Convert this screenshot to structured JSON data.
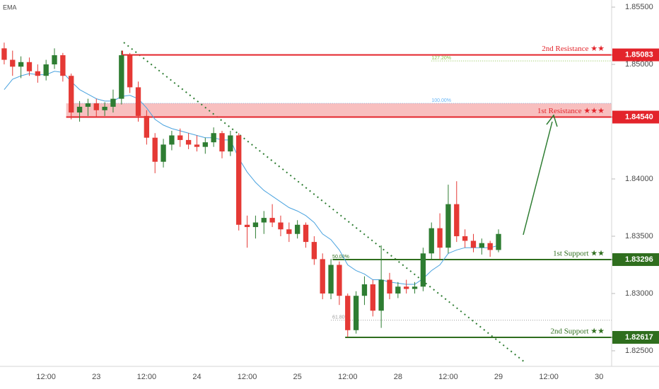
{
  "chart_data": {
    "type": "candlestick",
    "indicator_label": "EMA",
    "categories": [
      null,
      null,
      null,
      null,
      null,
      "12:00",
      null,
      null,
      null,
      null,
      null,
      "23",
      null,
      null,
      null,
      null,
      null,
      "12:00",
      null,
      null,
      null,
      null,
      null,
      "24",
      null,
      null,
      null,
      null,
      null,
      "12:00",
      null,
      null,
      null,
      null,
      null,
      "25",
      null,
      null,
      null,
      null,
      null,
      "12:00",
      null,
      null,
      null,
      null,
      null,
      "28",
      null,
      null,
      null,
      null,
      null,
      "12:00",
      null,
      null,
      null,
      null,
      null,
      "29",
      null,
      null,
      null,
      null,
      null,
      "12:00",
      null,
      null,
      null,
      null,
      null,
      "30",
      null
    ],
    "open": [
      1.8514,
      1.8504,
      1.8498,
      1.8502,
      1.8494,
      1.849,
      1.85,
      1.8508,
      1.849,
      1.8458,
      1.8463,
      1.8466,
      1.846,
      1.8463,
      1.847,
      1.8508,
      1.848,
      1.8455,
      1.8436,
      1.8415,
      1.843,
      1.8438,
      1.8434,
      1.843,
      1.8428,
      1.8432,
      1.844,
      1.8424,
      1.8438,
      1.836,
      1.8358,
      1.8362,
      1.8366,
      1.8362,
      1.8356,
      1.8352,
      1.836,
      1.8345,
      1.833,
      1.83,
      1.8325,
      1.8298,
      1.8268,
      1.8298,
      1.8308,
      1.8285,
      1.8312,
      1.83,
      1.8306,
      1.8304,
      1.8306,
      1.8335,
      1.8357,
      1.834,
      1.8378,
      1.835,
      1.8346,
      1.834,
      1.8344,
      1.8338,
      null,
      null,
      null,
      null,
      null,
      null,
      null,
      null,
      null,
      null,
      null,
      null,
      null
    ],
    "high": [
      1.8519,
      1.8512,
      1.8507,
      1.8506,
      1.85,
      1.8504,
      1.8514,
      1.851,
      1.8492,
      1.8468,
      1.847,
      1.847,
      1.8467,
      1.8478,
      1.8512,
      1.851,
      1.8485,
      1.846,
      1.844,
      1.8435,
      1.8442,
      1.8444,
      1.844,
      1.8438,
      1.8436,
      1.8445,
      1.8442,
      1.8442,
      1.844,
      1.8368,
      1.8368,
      1.8372,
      1.8378,
      1.8368,
      1.8362,
      1.8364,
      1.8362,
      1.835,
      1.8335,
      1.833,
      1.8328,
      1.83,
      1.8302,
      1.8315,
      1.8312,
      1.8342,
      1.8318,
      1.831,
      1.8312,
      1.831,
      1.834,
      1.8362,
      1.837,
      1.8395,
      1.8398,
      1.8356,
      1.8352,
      1.8348,
      1.8346,
      1.8356,
      null,
      null,
      null,
      null,
      null,
      null,
      null,
      null,
      null,
      null,
      null,
      null,
      null
    ],
    "low": [
      1.85,
      1.849,
      1.8488,
      1.849,
      1.8484,
      1.8486,
      1.8496,
      1.8485,
      1.8452,
      1.845,
      1.8455,
      1.8454,
      1.8455,
      1.8458,
      1.8465,
      1.8475,
      1.845,
      1.843,
      1.8405,
      1.841,
      1.8425,
      1.8428,
      1.8426,
      1.8424,
      1.8422,
      1.8428,
      1.8418,
      1.842,
      1.8355,
      1.834,
      1.8348,
      1.8352,
      1.8358,
      1.835,
      1.8345,
      1.8348,
      1.834,
      1.8325,
      1.8295,
      1.8295,
      1.829,
      1.8262,
      1.8265,
      1.829,
      1.828,
      1.827,
      1.8295,
      1.8296,
      1.83,
      1.83,
      1.8302,
      1.833,
      1.833,
      1.8335,
      1.8345,
      1.834,
      1.8336,
      1.8334,
      1.8332,
      1.8336,
      null,
      null,
      null,
      null,
      null,
      null,
      null,
      null,
      null,
      null,
      null,
      null,
      null
    ],
    "close": [
      1.8504,
      1.8498,
      1.8502,
      1.8494,
      1.849,
      1.85,
      1.8508,
      1.849,
      1.8458,
      1.8463,
      1.8466,
      1.846,
      1.8463,
      1.847,
      1.8508,
      1.848,
      1.8455,
      1.8436,
      1.8415,
      1.843,
      1.8438,
      1.8434,
      1.843,
      1.8428,
      1.8432,
      1.844,
      1.8424,
      1.8438,
      1.836,
      1.8358,
      1.8362,
      1.8366,
      1.8362,
      1.8356,
      1.8352,
      1.836,
      1.8345,
      1.833,
      1.83,
      1.8325,
      1.8298,
      1.8268,
      1.8298,
      1.8308,
      1.8285,
      1.8312,
      1.83,
      1.8306,
      1.8304,
      1.8306,
      1.8335,
      1.8357,
      1.834,
      1.8378,
      1.835,
      1.8346,
      1.834,
      1.8344,
      1.8338,
      1.8352,
      null,
      null,
      null,
      null,
      null,
      null,
      null,
      null,
      null,
      null,
      null,
      null,
      null
    ],
    "up_color": "#2e7d32",
    "down_color": "#e53935",
    "ema": {
      "color": "#4aa3df",
      "values": [
        1.8478,
        1.8487,
        1.849,
        1.8492,
        1.8491,
        1.8491,
        1.8494,
        1.8493,
        1.8485,
        1.8478,
        1.8474,
        1.847,
        1.8468,
        1.8468,
        1.8472,
        1.8473,
        1.847,
        1.8462,
        1.8452,
        1.8447,
        1.8444,
        1.8442,
        1.844,
        1.8438,
        1.8436,
        1.8436,
        1.8434,
        1.8434,
        1.8418,
        1.8406,
        1.8397,
        1.839,
        1.8385,
        1.838,
        1.8375,
        1.8372,
        1.8368,
        1.8362,
        1.8352,
        1.8347,
        1.8338,
        1.8325,
        1.832,
        1.8317,
        1.8312,
        1.8312,
        1.831,
        1.8309,
        1.8308,
        1.8308,
        1.8313,
        1.832,
        1.8325,
        1.8335,
        1.8338,
        1.834,
        1.834,
        1.834,
        1.834,
        1.8342,
        null,
        null,
        null,
        null,
        null,
        null,
        null,
        null,
        null,
        null,
        null,
        null,
        null
      ]
    },
    "ylim": [
      1.82364,
      1.85562
    ],
    "yticks": [
      {
        "value": 1.855,
        "label": "1.85500"
      },
      {
        "value": 1.85,
        "label": "1.85000"
      },
      {
        "value": 1.84,
        "label": "1.84000"
      },
      {
        "value": 1.835,
        "label": "1.83500"
      },
      {
        "value": 1.83,
        "label": "1.83000"
      },
      {
        "value": 1.825,
        "label": "1.82500"
      }
    ],
    "levels": [
      {
        "label": "2nd Resistance ★★",
        "value": 1.85083,
        "color": "#e3242b"
      },
      {
        "label": "1st Resistance ★★★",
        "value": 1.8454,
        "value_label": "1.84540",
        "zone_top": 1.8466,
        "color": "#e3242b"
      },
      {
        "label": "1st Support ★★",
        "value": 1.83296,
        "color": "#2f6e1e"
      },
      {
        "label": "2nd Support ★★",
        "value": 1.82617,
        "color": "#2f6e1e"
      }
    ],
    "fib": [
      {
        "label": "127.20%",
        "value": 1.8503,
        "color": "#8bc34a"
      },
      {
        "label": "100.00%",
        "value": 1.8466,
        "color": "#64b5f6"
      },
      {
        "label": "50.00%",
        "value": 1.83296,
        "color": "#2f6e1e"
      },
      {
        "label": "61.80%",
        "value": 1.82767,
        "color": "#9e9e9e"
      }
    ]
  }
}
